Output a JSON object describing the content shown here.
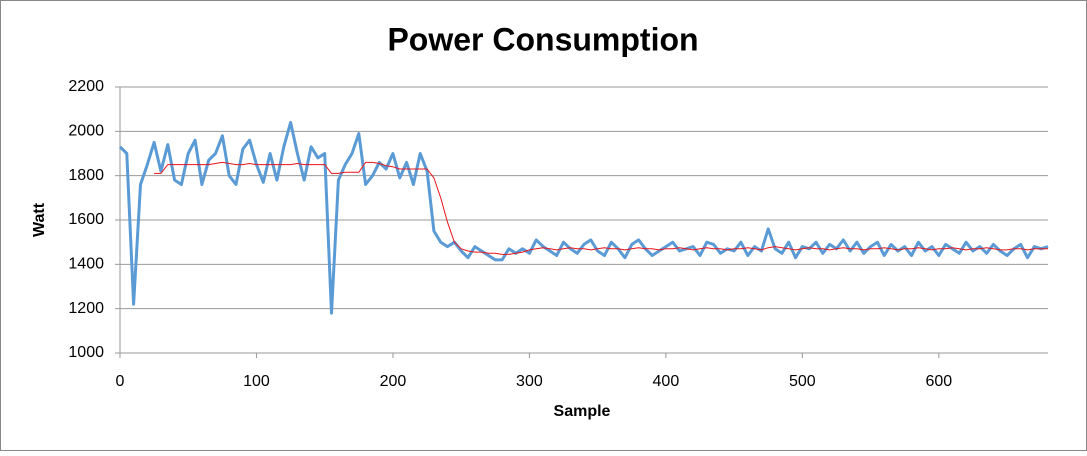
{
  "chart_data": {
    "type": "line",
    "title": "Power Consumption",
    "x_label": "Sample",
    "y_label": "Watt",
    "x": [
      0,
      5,
      10,
      15,
      20,
      25,
      30,
      35,
      40,
      45,
      50,
      55,
      60,
      65,
      70,
      75,
      80,
      85,
      90,
      95,
      100,
      105,
      110,
      115,
      120,
      125,
      130,
      135,
      140,
      145,
      150,
      155,
      160,
      165,
      170,
      175,
      180,
      185,
      190,
      195,
      200,
      205,
      210,
      215,
      220,
      225,
      230,
      235,
      240,
      245,
      250,
      255,
      260,
      265,
      270,
      275,
      280,
      285,
      290,
      295,
      300,
      305,
      310,
      315,
      320,
      325,
      330,
      335,
      340,
      345,
      350,
      355,
      360,
      365,
      370,
      375,
      380,
      385,
      390,
      395,
      400,
      405,
      410,
      415,
      420,
      425,
      430,
      435,
      440,
      445,
      450,
      455,
      460,
      465,
      470,
      475,
      480,
      485,
      490,
      495,
      500,
      505,
      510,
      515,
      520,
      525,
      530,
      535,
      540,
      545,
      550,
      555,
      560,
      565,
      570,
      575,
      580,
      585,
      590,
      595,
      600,
      605,
      610,
      615,
      620,
      625,
      630,
      635,
      640,
      645,
      650,
      655,
      660,
      665,
      670,
      675,
      680
    ],
    "series": [
      {
        "color": "#5b9bd5",
        "width": 3,
        "values": [
          1930,
          1900,
          1220,
          1760,
          1850,
          1950,
          1820,
          1940,
          1780,
          1760,
          1900,
          1960,
          1760,
          1870,
          1900,
          1980,
          1800,
          1760,
          1920,
          1960,
          1850,
          1770,
          1900,
          1780,
          1930,
          2040,
          1900,
          1780,
          1930,
          1880,
          1900,
          1180,
          1780,
          1850,
          1900,
          1990,
          1760,
          1800,
          1860,
          1830,
          1900,
          1790,
          1860,
          1760,
          1900,
          1820,
          1550,
          1500,
          1480,
          1500,
          1460,
          1430,
          1480,
          1460,
          1440,
          1420,
          1420,
          1470,
          1450,
          1470,
          1450,
          1510,
          1480,
          1460,
          1440,
          1500,
          1470,
          1450,
          1490,
          1510,
          1460,
          1440,
          1500,
          1470,
          1430,
          1490,
          1510,
          1470,
          1440,
          1460,
          1480,
          1500,
          1460,
          1470,
          1480,
          1440,
          1500,
          1490,
          1450,
          1470,
          1460,
          1500,
          1440,
          1480,
          1460,
          1560,
          1470,
          1450,
          1500,
          1430,
          1480,
          1470,
          1500,
          1450,
          1490,
          1470,
          1510,
          1460,
          1500,
          1450,
          1480,
          1500,
          1440,
          1490,
          1460,
          1480,
          1440,
          1500,
          1460,
          1480,
          1440,
          1490,
          1470,
          1450,
          1500,
          1460,
          1480,
          1450,
          1490,
          1460,
          1440,
          1470,
          1490,
          1430,
          1480,
          1470,
          1480
        ]
      },
      {
        "color": "#e8141b",
        "width": 1,
        "values": [
          null,
          null,
          null,
          null,
          null,
          1810,
          1810,
          1850,
          1850,
          1850,
          1850,
          1850,
          1850,
          1850,
          1855,
          1860,
          1855,
          1850,
          1850,
          1855,
          1850,
          1850,
          1850,
          1850,
          1850,
          1850,
          1855,
          1850,
          1850,
          1850,
          1850,
          1810,
          1810,
          1815,
          1815,
          1815,
          1860,
          1860,
          1855,
          1845,
          1840,
          1830,
          1830,
          1830,
          1830,
          1830,
          1790,
          1700,
          1590,
          1500,
          1470,
          1460,
          1455,
          1455,
          1450,
          1450,
          1445,
          1445,
          1450,
          1455,
          1465,
          1470,
          1475,
          1470,
          1465,
          1470,
          1475,
          1470,
          1470,
          1465,
          1470,
          1475,
          1470,
          1470,
          1465,
          1470,
          1475,
          1470,
          1470,
          1465,
          1470,
          1470,
          1475,
          1470,
          1465,
          1470,
          1475,
          1470,
          1470,
          1465,
          1470,
          1470,
          1475,
          1470,
          1465,
          1475,
          1480,
          1475,
          1470,
          1465,
          1470,
          1475,
          1470,
          1470,
          1465,
          1470,
          1475,
          1470,
          1470,
          1465,
          1470,
          1470,
          1475,
          1470,
          1465,
          1470,
          1470,
          1475,
          1470,
          1465,
          1470,
          1470,
          1475,
          1470,
          1465,
          1470,
          1470,
          1475,
          1470,
          1465,
          1465,
          1470,
          1470,
          1465,
          1470,
          1470,
          1470
        ]
      }
    ],
    "xlim": [
      0,
      680
    ],
    "xticks": [
      0,
      100,
      200,
      300,
      400,
      500,
      600
    ],
    "ylim": [
      1000,
      2200
    ],
    "yticks": [
      1000,
      1200,
      1400,
      1600,
      1800,
      2000,
      2200
    ],
    "grid": true
  }
}
